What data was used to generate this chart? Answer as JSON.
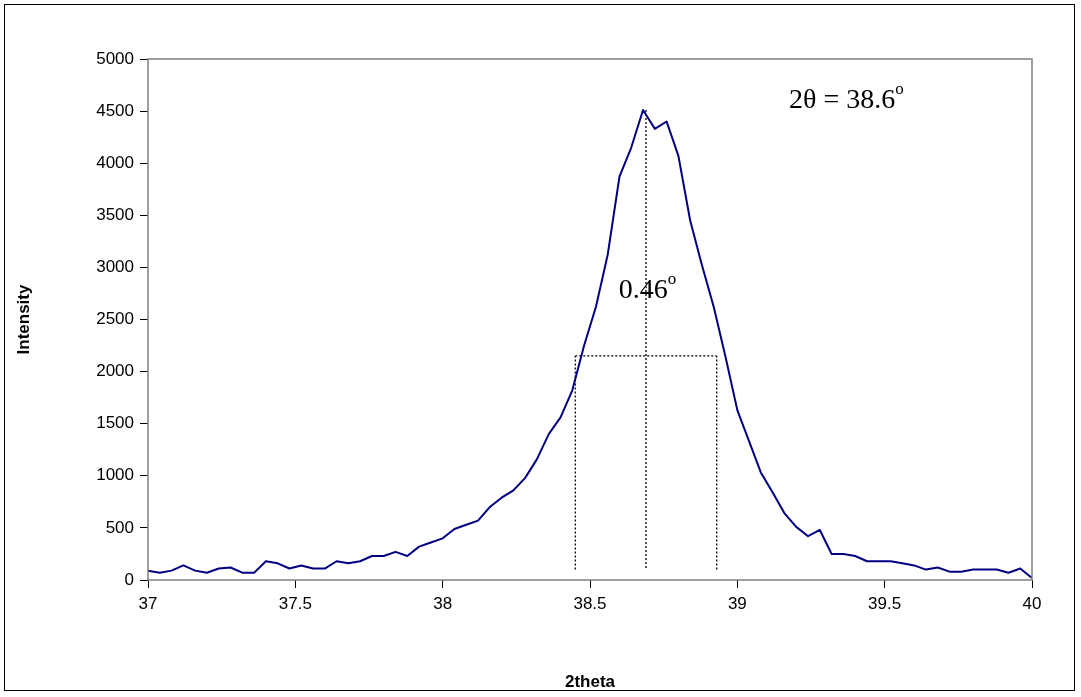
{
  "chart_data": {
    "type": "line",
    "xlabel": "2theta",
    "ylabel": "Intensity",
    "xlim": [
      37,
      40
    ],
    "xticks": [
      37,
      37.5,
      38,
      38.5,
      39,
      39.5,
      40
    ],
    "ylim": [
      0,
      5000
    ],
    "yticks": [
      0,
      500,
      1000,
      1500,
      2000,
      2500,
      3000,
      3500,
      4000,
      4500,
      5000
    ],
    "grid": false,
    "legend": false,
    "marker": "none",
    "annotations": [
      "2θ = 38.6$^{o}$",
      "0.46$^{o}$"
    ],
    "series": [
      {
        "color": "#000080",
        "line_style": "solid",
        "x": [
          37,
          37.04,
          37.08,
          37.12,
          37.16,
          37.2,
          37.24,
          37.28,
          37.32,
          37.36,
          37.4,
          37.44,
          37.48,
          37.52,
          37.56,
          37.6,
          37.64,
          37.68,
          37.72,
          37.76,
          37.8,
          37.84,
          37.88,
          37.92,
          37.96,
          38,
          38.04,
          38.08,
          38.12,
          38.16,
          38.2,
          38.24,
          38.28,
          38.32,
          38.36,
          38.4,
          38.44,
          38.48,
          38.52,
          38.56,
          38.6,
          38.64,
          38.68,
          38.72,
          38.76,
          38.8,
          38.84,
          38.88,
          38.92,
          38.96,
          39,
          39.04,
          39.08,
          39.12,
          39.16,
          39.2,
          39.24,
          39.28,
          39.32,
          39.36,
          39.4,
          39.44,
          39.48,
          39.52,
          39.56,
          39.6,
          39.64,
          39.68,
          39.72,
          39.76,
          39.8,
          39.84,
          39.88,
          39.92,
          39.96,
          40
        ],
        "values": [
          90,
          70,
          90,
          140,
          90,
          70,
          110,
          120,
          70,
          70,
          180,
          160,
          110,
          140,
          110,
          110,
          180,
          160,
          180,
          230,
          230,
          270,
          230,
          320,
          360,
          400,
          490,
          530,
          570,
          700,
          790,
          860,
          980,
          1160,
          1400,
          1560,
          1820,
          2250,
          2620,
          3120,
          3870,
          4150,
          4510,
          4330,
          4400,
          4070,
          3450,
          3020,
          2620,
          2140,
          1630,
          1330,
          1030,
          840,
          640,
          510,
          420,
          480,
          250,
          250,
          230,
          180,
          180,
          180,
          160,
          140,
          100,
          120,
          80,
          80,
          100,
          100,
          100,
          70,
          110,
          20
        ]
      },
      {
        "color": "#000000",
        "line_style": "dotted",
        "x": [
          38.45,
          38.45
        ],
        "values": [
          100,
          2150
        ]
      },
      {
        "color": "#000000",
        "line_style": "dotted",
        "x": [
          38.69,
          38.69
        ],
        "values": [
          4510,
          100
        ]
      },
      {
        "color": "#000000",
        "line_style": "dotted",
        "x": [
          38.93,
          38.93
        ],
        "values": [
          100,
          2150
        ]
      },
      {
        "color": "#000000",
        "line_style": "dotted",
        "x": [
          38.45,
          38.93
        ],
        "values": [
          2150,
          2150
        ]
      }
    ]
  }
}
